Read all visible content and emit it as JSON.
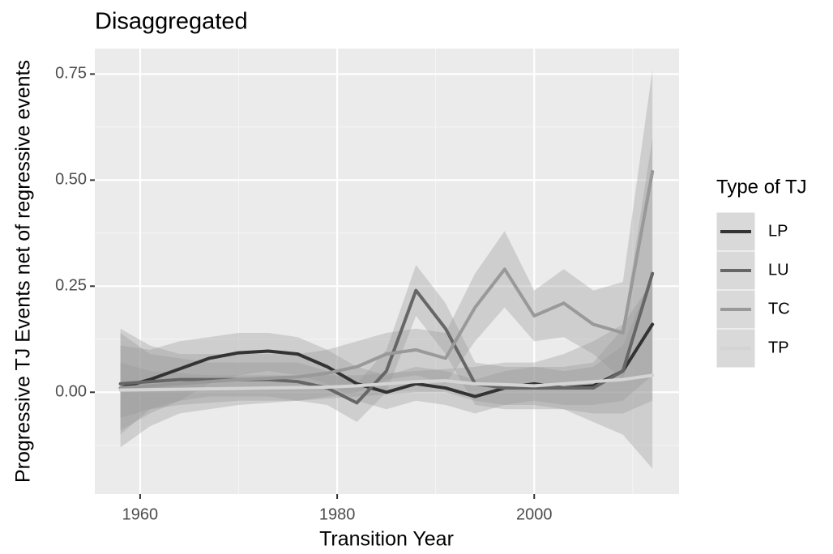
{
  "chart_data": {
    "type": "line",
    "title": "Disaggregated",
    "x_label": "Transition Year",
    "y_label": "Progressive TJ Events net of regressive events",
    "legend_title": "Type of TJ",
    "legend_position": "right",
    "x": [
      1958,
      1961,
      1964,
      1967,
      1970,
      1973,
      1976,
      1979,
      1982,
      1985,
      1988,
      1991,
      1994,
      1997,
      2000,
      2003,
      2006,
      2009,
      2012
    ],
    "series": [
      {
        "name": "LP",
        "color": "#333333",
        "values": [
          0.01,
          0.03,
          0.055,
          0.08,
          0.093,
          0.097,
          0.09,
          0.06,
          0.02,
          0.0,
          0.02,
          0.01,
          -0.01,
          0.01,
          0.02,
          0.01,
          0.015,
          0.05,
          0.16
        ],
        "lower": [
          -0.09,
          -0.05,
          -0.02,
          0.02,
          0.04,
          0.05,
          0.04,
          0.02,
          -0.02,
          -0.04,
          -0.02,
          -0.03,
          -0.05,
          -0.03,
          -0.02,
          -0.03,
          -0.03,
          -0.02,
          0.04
        ],
        "upper": [
          0.11,
          0.1,
          0.12,
          0.13,
          0.14,
          0.14,
          0.13,
          0.1,
          0.06,
          0.04,
          0.06,
          0.05,
          0.03,
          0.05,
          0.06,
          0.05,
          0.06,
          0.11,
          0.28
        ]
      },
      {
        "name": "LU",
        "color": "#666666",
        "values": [
          0.02,
          0.025,
          0.03,
          0.03,
          0.03,
          0.03,
          0.025,
          0.01,
          -0.025,
          0.05,
          0.24,
          0.15,
          0.02,
          0.01,
          0.01,
          0.01,
          0.01,
          0.05,
          0.28
        ],
        "lower": [
          -0.1,
          -0.04,
          -0.02,
          -0.01,
          -0.01,
          -0.01,
          -0.02,
          -0.03,
          -0.07,
          0.0,
          0.18,
          0.09,
          -0.03,
          -0.04,
          -0.04,
          -0.04,
          -0.05,
          -0.05,
          -0.02
        ],
        "upper": [
          0.14,
          0.09,
          0.08,
          0.07,
          0.07,
          0.07,
          0.07,
          0.05,
          0.02,
          0.1,
          0.3,
          0.21,
          0.07,
          0.06,
          0.06,
          0.06,
          0.07,
          0.15,
          0.6
        ]
      },
      {
        "name": "TC",
        "color": "#999999",
        "values": [
          0.01,
          0.015,
          0.02,
          0.025,
          0.03,
          0.033,
          0.036,
          0.045,
          0.06,
          0.09,
          0.1,
          0.08,
          0.2,
          0.29,
          0.18,
          0.21,
          0.16,
          0.14,
          0.52
        ],
        "lower": [
          -0.13,
          -0.08,
          -0.05,
          -0.04,
          -0.03,
          -0.025,
          -0.02,
          -0.01,
          0.0,
          0.03,
          0.04,
          0.02,
          0.12,
          0.2,
          0.12,
          0.13,
          0.09,
          0.03,
          0.28
        ],
        "upper": [
          0.15,
          0.11,
          0.09,
          0.09,
          0.09,
          0.09,
          0.09,
          0.1,
          0.12,
          0.14,
          0.15,
          0.14,
          0.28,
          0.38,
          0.24,
          0.29,
          0.24,
          0.26,
          0.76
        ]
      },
      {
        "name": "TP",
        "color": "#d4d4d4",
        "values": [
          0.005,
          0.006,
          0.007,
          0.008,
          0.009,
          0.01,
          0.011,
          0.012,
          0.015,
          0.02,
          0.025,
          0.027,
          0.02,
          0.018,
          0.015,
          0.02,
          0.025,
          0.03,
          0.04
        ],
        "lower": [
          -0.06,
          -0.04,
          -0.03,
          -0.025,
          -0.02,
          -0.02,
          -0.02,
          -0.015,
          -0.01,
          -0.005,
          0.0,
          0.0,
          -0.02,
          -0.03,
          -0.03,
          -0.04,
          -0.07,
          -0.1,
          -0.18
        ],
        "upper": [
          0.07,
          0.05,
          0.045,
          0.04,
          0.04,
          0.04,
          0.04,
          0.04,
          0.04,
          0.045,
          0.05,
          0.055,
          0.06,
          0.07,
          0.07,
          0.09,
          0.12,
          0.16,
          0.26
        ]
      }
    ],
    "xlim": [
      1955.4,
      2014.7
    ],
    "ylim": [
      -0.24,
      0.81
    ],
    "xticks": [
      1960,
      1980,
      2000
    ],
    "yticks": [
      {
        "value": 0,
        "label": "0.00"
      },
      {
        "value": 0.25,
        "label": "0.25"
      },
      {
        "value": 0.5,
        "label": "0.50"
      },
      {
        "value": 0.75,
        "label": "0.75"
      }
    ],
    "x_minor_ticks": [
      1970,
      1990,
      2010
    ],
    "y_minor_ticks": [
      -0.125,
      0.125,
      0.375,
      0.625
    ],
    "grid": true
  }
}
